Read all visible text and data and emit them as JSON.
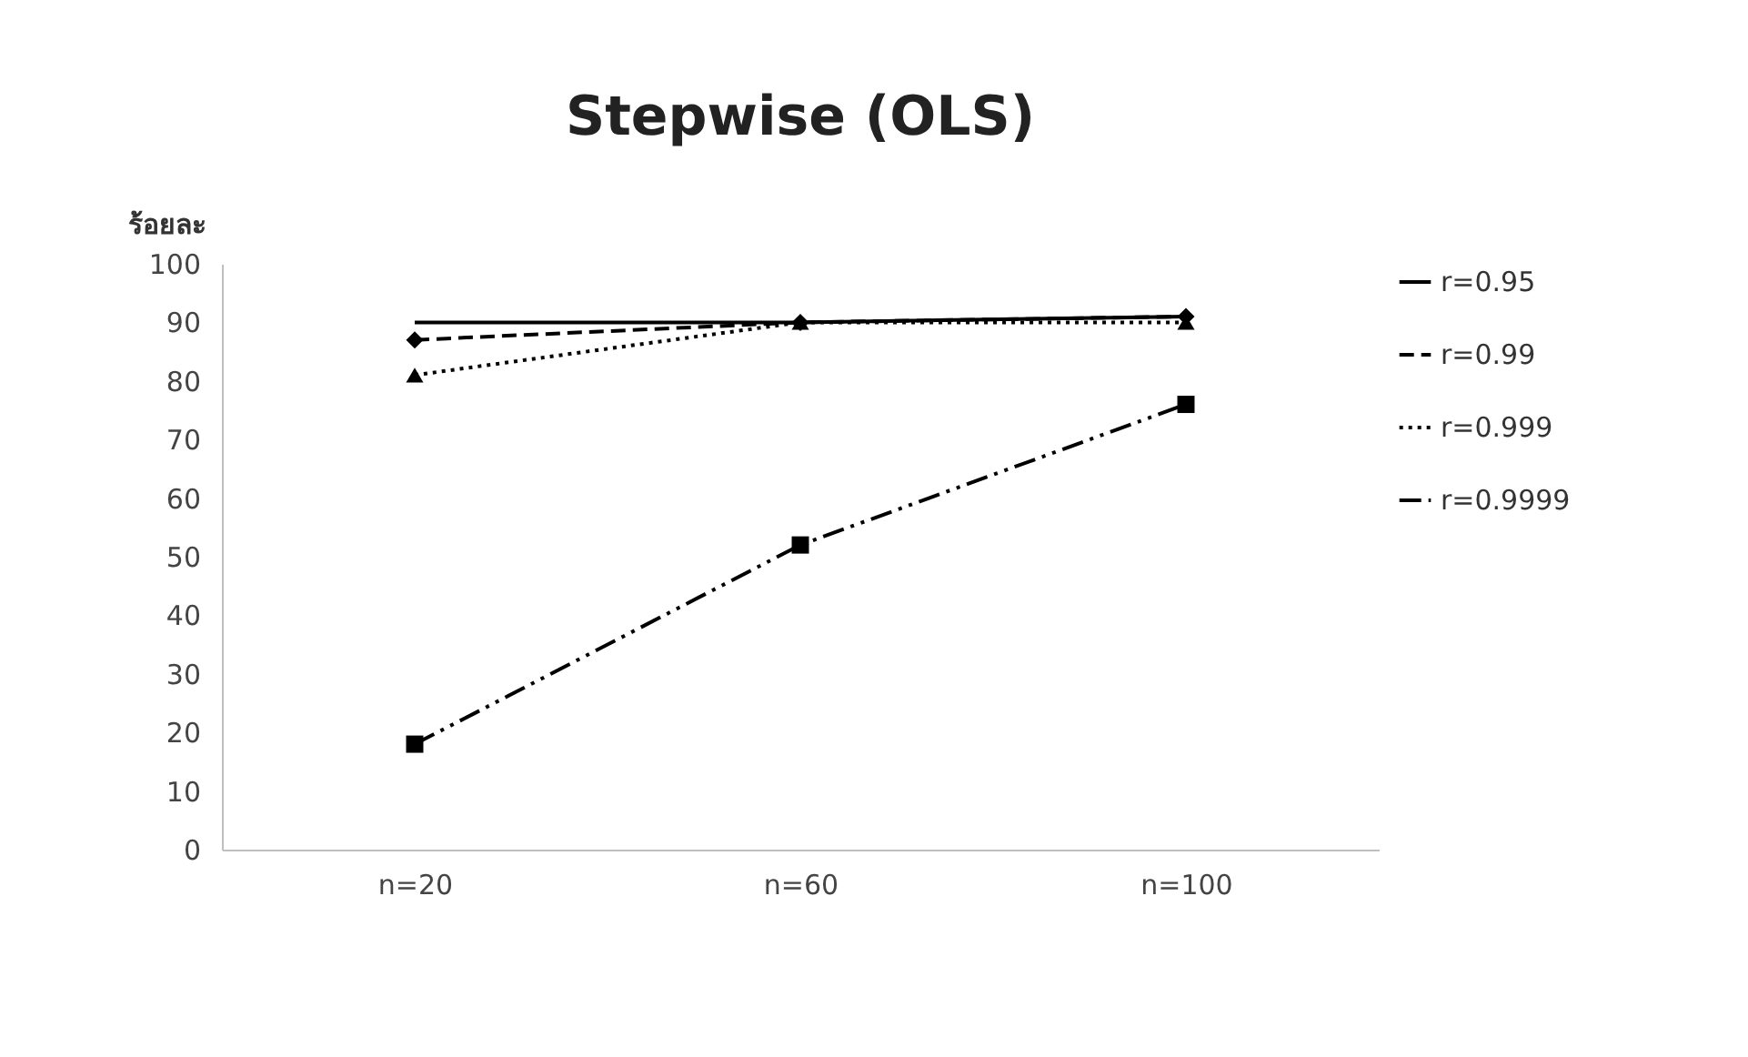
{
  "chart_data": {
    "type": "line",
    "title": "Stepwise (OLS)",
    "ylabel": "ร้อยละ",
    "categories": [
      "n=20",
      "n=60",
      "n=100"
    ],
    "series": [
      {
        "name": "r=0.95",
        "color": "#000000",
        "values": [
          90,
          90,
          91
        ],
        "line_style": "solid"
      },
      {
        "name": "r=0.99",
        "color": "#000000",
        "values": [
          87,
          90,
          91
        ],
        "marker": "diamond",
        "line_style": "dashed"
      },
      {
        "name": "r=0.999",
        "color": "#000000",
        "values": [
          81,
          90,
          90
        ],
        "marker": "triangle",
        "line_style": "dotted"
      },
      {
        "name": "r=0.9999",
        "color": "#000000",
        "values": [
          18,
          52,
          76
        ],
        "marker": "square",
        "line_style": "dashdot"
      }
    ],
    "ylim": [
      0,
      100
    ],
    "yticks": [
      0,
      10,
      20,
      30,
      40,
      50,
      60,
      70,
      80,
      90,
      100
    ],
    "grid": false,
    "legend": "right"
  }
}
